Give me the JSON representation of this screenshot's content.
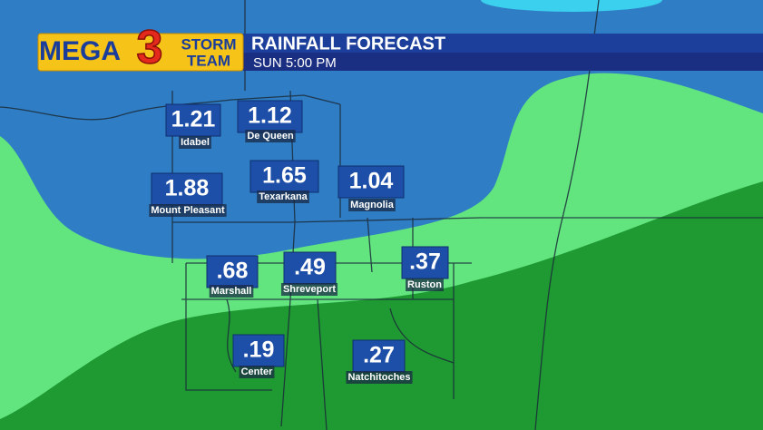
{
  "header": {
    "logo": {
      "mega": "MEGA",
      "number": "3",
      "storm": "STORM",
      "team": "TEAM"
    },
    "title": "RAINFALL FORECAST",
    "subtitle": "SUN 5:00 PM"
  },
  "cities": [
    {
      "name": "Idabel",
      "value": "1.21"
    },
    {
      "name": "De Queen",
      "value": "1.12"
    },
    {
      "name": "Mount Pleasant",
      "value": "1.88"
    },
    {
      "name": "Texarkana",
      "value": "1.65"
    },
    {
      "name": "Magnolia",
      "value": "1.04"
    },
    {
      "name": "Marshall",
      "value": ".68"
    },
    {
      "name": "Shreveport",
      "value": ".49"
    },
    {
      "name": "Ruston",
      "value": ".37"
    },
    {
      "name": "Center",
      "value": ".19"
    },
    {
      "name": "Natchitoches",
      "value": ".27"
    }
  ]
}
